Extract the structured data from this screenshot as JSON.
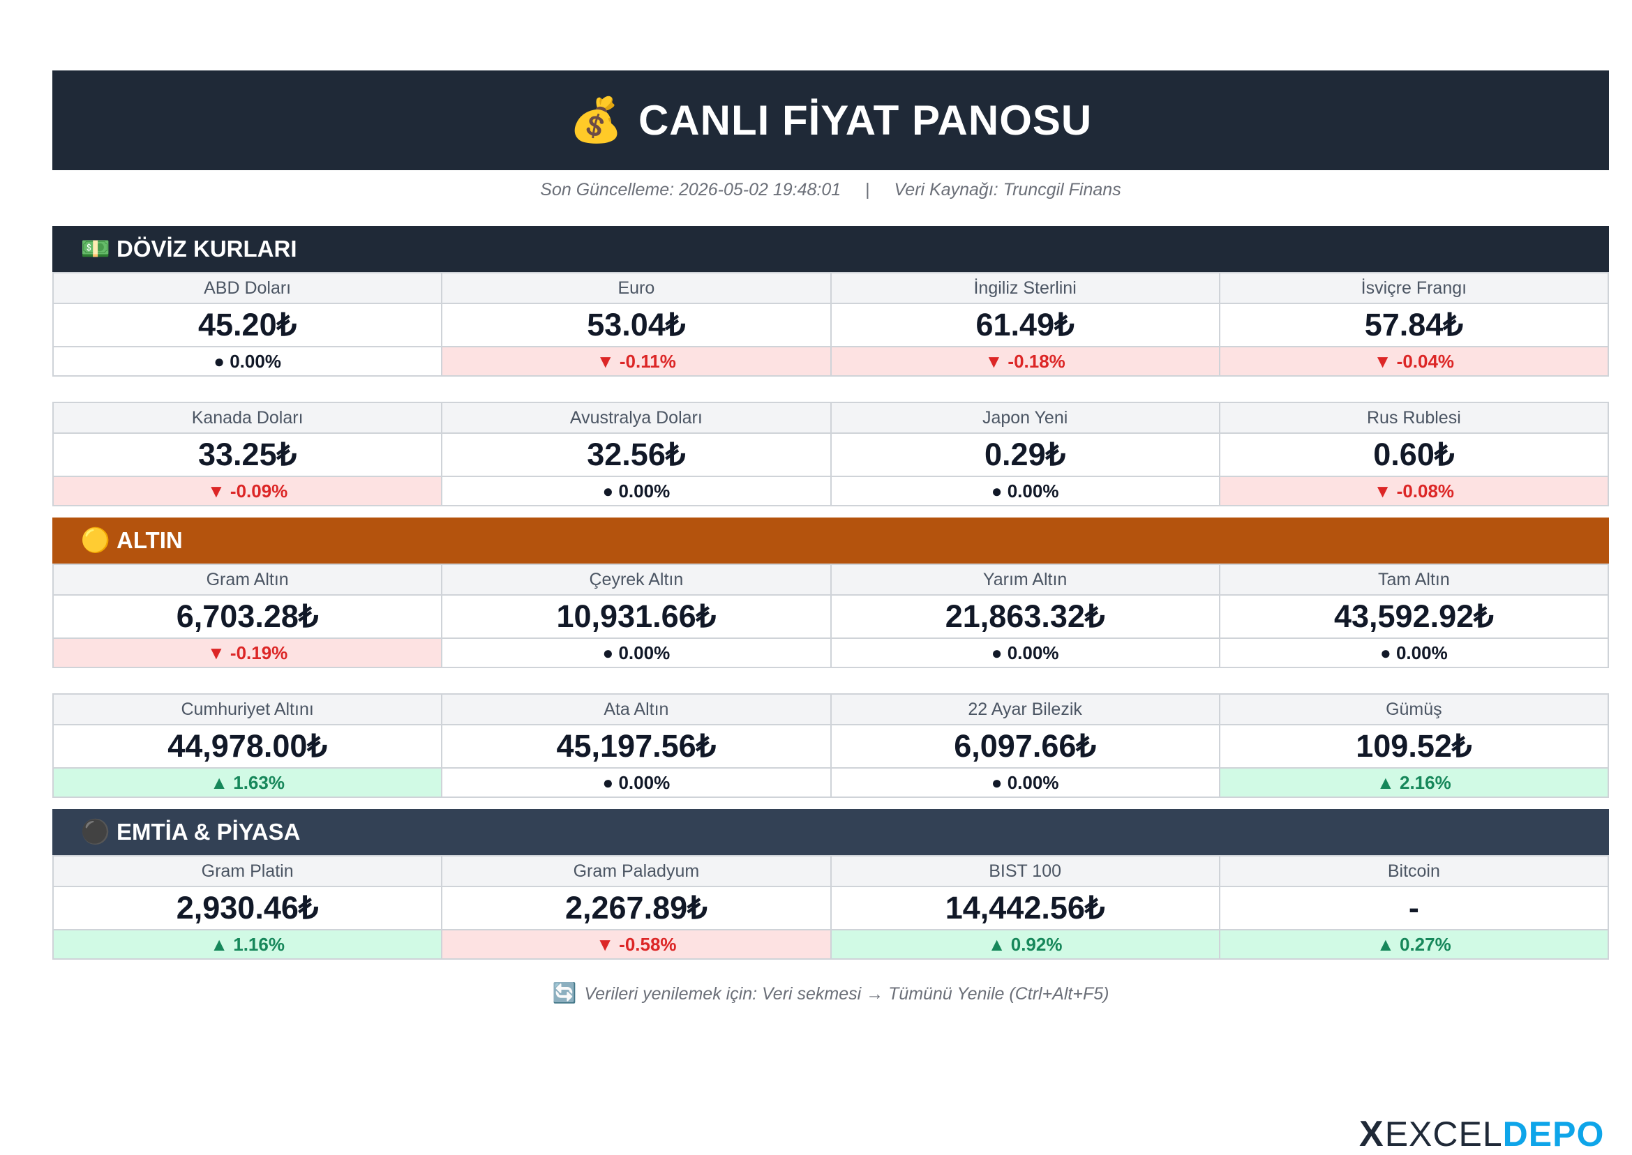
{
  "header": {
    "icon": "money-bag-icon",
    "icon_glyph": "💰",
    "title": "CANLI FİYAT PANOSU"
  },
  "meta": {
    "updated": "Son Güncelleme: 2026-05-02 19:48:01",
    "separator": "|",
    "source": "Veri Kaynağı: Truncgil Finans"
  },
  "colors": {
    "dark": "#1f2937",
    "gold": "#b4530d",
    "slate": "#334155",
    "down_bg": "#fde2e2",
    "down_fg": "#dc2626",
    "up_bg": "#d1fae5",
    "up_fg": "#16875a"
  },
  "sections": {
    "doviz": {
      "icon": "banknote-icon",
      "icon_glyph": "💵",
      "title": "DÖVİZ KURLARI",
      "rows": [
        [
          {
            "name": "ABD Doları",
            "price": "45.20₺",
            "change": "● 0.00%",
            "trend": "flat"
          },
          {
            "name": "Euro",
            "price": "53.04₺",
            "change": "▼ -0.11%",
            "trend": "down"
          },
          {
            "name": "İngiliz Sterlini",
            "price": "61.49₺",
            "change": "▼ -0.18%",
            "trend": "down"
          },
          {
            "name": "İsviçre Frangı",
            "price": "57.84₺",
            "change": "▼ -0.04%",
            "trend": "down"
          }
        ],
        [
          {
            "name": "Kanada Doları",
            "price": "33.25₺",
            "change": "▼ -0.09%",
            "trend": "down"
          },
          {
            "name": "Avustralya Doları",
            "price": "32.56₺",
            "change": "● 0.00%",
            "trend": "flat"
          },
          {
            "name": "Japon Yeni",
            "price": "0.29₺",
            "change": "● 0.00%",
            "trend": "flat"
          },
          {
            "name": "Rus Rublesi",
            "price": "0.60₺",
            "change": "▼ -0.08%",
            "trend": "down"
          }
        ]
      ]
    },
    "altin": {
      "icon": "gold-coin-icon",
      "icon_glyph": "🟡",
      "title": "ALTIN",
      "rows": [
        [
          {
            "name": "Gram Altın",
            "price": "6,703.28₺",
            "change": "▼ -0.19%",
            "trend": "down"
          },
          {
            "name": "Çeyrek Altın",
            "price": "10,931.66₺",
            "change": "● 0.00%",
            "trend": "flat"
          },
          {
            "name": "Yarım Altın",
            "price": "21,863.32₺",
            "change": "● 0.00%",
            "trend": "flat"
          },
          {
            "name": "Tam Altın",
            "price": "43,592.92₺",
            "change": "● 0.00%",
            "trend": "flat"
          }
        ],
        [
          {
            "name": "Cumhuriyet Altını",
            "price": "44,978.00₺",
            "change": "▲ 1.63%",
            "trend": "up"
          },
          {
            "name": "Ata Altın",
            "price": "45,197.56₺",
            "change": "● 0.00%",
            "trend": "flat"
          },
          {
            "name": "22 Ayar Bilezik",
            "price": "6,097.66₺",
            "change": "● 0.00%",
            "trend": "flat"
          },
          {
            "name": "Gümüş",
            "price": "109.52₺",
            "change": "▲ 2.16%",
            "trend": "up"
          }
        ]
      ]
    },
    "emtia": {
      "icon": "black-circle-icon",
      "icon_glyph": "⚫",
      "title": "EMTİA & PİYASA",
      "rows": [
        [
          {
            "name": "Gram Platin",
            "price": "2,930.46₺",
            "change": "▲ 1.16%",
            "trend": "up"
          },
          {
            "name": "Gram Paladyum",
            "price": "2,267.89₺",
            "change": "▼ -0.58%",
            "trend": "down"
          },
          {
            "name": "BIST 100",
            "price": "14,442.56₺",
            "change": "▲ 0.92%",
            "trend": "up"
          },
          {
            "name": "Bitcoin",
            "price": "-",
            "change": "▲ 0.27%",
            "trend": "up"
          }
        ]
      ]
    }
  },
  "footer": {
    "icon": "refresh-icon",
    "icon_glyph": "🔄",
    "note": "Verileri yenilemek için: Veri sekmesi → Tümünü Yenile (Ctrl+Alt+F5)"
  },
  "brand": {
    "mark": "X",
    "word1": "EXCEL",
    "word2": "DEPO"
  }
}
